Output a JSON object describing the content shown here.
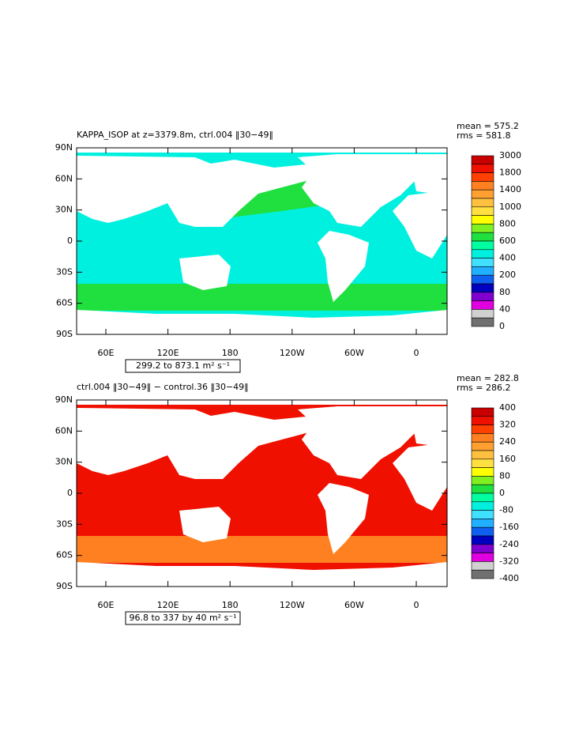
{
  "lat_ticks": [
    "90N",
    "60N",
    "30N",
    "0",
    "30S",
    "60S",
    "90S"
  ],
  "lon_ticks": [
    "60E",
    "120E",
    "180",
    "120W",
    "60W",
    "0"
  ],
  "panels": [
    {
      "title": "KAPPA_ISOP at z=3379.8m, ctrl.004 ‖30−49‖",
      "mean": "mean = 575.2",
      "rms": "rms = 581.8",
      "range": "299.2 to 873.1 m² s⁻¹",
      "ocean_color": "#00f0e0",
      "band_color": "#20e040",
      "colorbar": {
        "labels": [
          "3000",
          "1800",
          "1400",
          "1000",
          "800",
          "600",
          "400",
          "200",
          "80",
          "40",
          "0"
        ],
        "colors": [
          "#c80000",
          "#f01000",
          "#ff4000",
          "#ff8020",
          "#ffa030",
          "#ffc040",
          "#ffe040",
          "#ffff00",
          "#80f020",
          "#20e040",
          "#00ffa0",
          "#00f0e0",
          "#40e0ff",
          "#20b0ff",
          "#1060f0",
          "#0000c0",
          "#8000d0",
          "#e000e0",
          "#d0d0d0",
          "#707070"
        ]
      }
    },
    {
      "title": "ctrl.004 ‖30−49‖ − control.36 ‖30−49‖",
      "mean": "mean = 282.8",
      "rms": "rms = 286.2",
      "range": "96.8 to 337 by 40 m² s⁻¹",
      "ocean_color": "#f01000",
      "band_color": "#ff8020",
      "colorbar": {
        "labels": [
          "400",
          "320",
          "240",
          "160",
          "80",
          "0",
          "-80",
          "-160",
          "-240",
          "-320",
          "-400"
        ],
        "colors": [
          "#c80000",
          "#f01000",
          "#ff4000",
          "#ff8020",
          "#ffa030",
          "#ffc040",
          "#ffe040",
          "#ffff00",
          "#80f020",
          "#20e040",
          "#00ffa0",
          "#00f0e0",
          "#40e0ff",
          "#20b0ff",
          "#1060f0",
          "#0000c0",
          "#8000d0",
          "#e000e0",
          "#d0d0d0",
          "#707070"
        ]
      }
    }
  ]
}
